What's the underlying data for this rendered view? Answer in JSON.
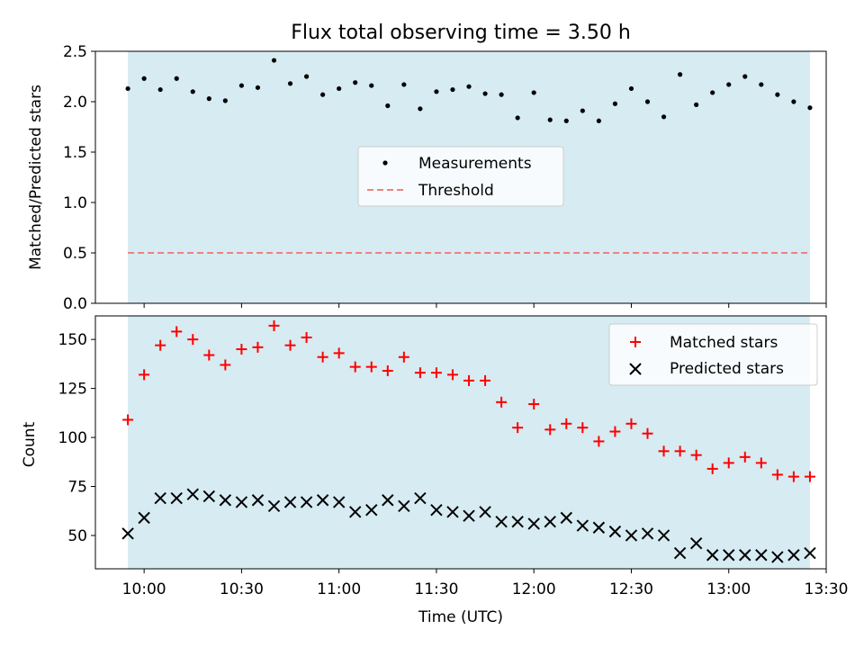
{
  "chart_data": [
    {
      "type": "scatter",
      "panel": "top",
      "title": "Flux total observing time = 3.50 h",
      "xlabel": "",
      "ylabel": "Matched/Predicted stars",
      "ylim": [
        0,
        2.5
      ],
      "yticks": [
        "0.0",
        "0.5",
        "1.0",
        "1.5",
        "2.0",
        "2.5"
      ],
      "legend_position": "center",
      "series": [
        {
          "name": "Measurements",
          "color": "#000000",
          "marker": "dot",
          "times_min": [
            595,
            600,
            605,
            610,
            615,
            620,
            625,
            630,
            635,
            640,
            645,
            650,
            655,
            660,
            665,
            670,
            675,
            680,
            685,
            690,
            695,
            700,
            705,
            710,
            715,
            720,
            725,
            730,
            735,
            740,
            745,
            750,
            755,
            760,
            765,
            770,
            775,
            780,
            785,
            790,
            795,
            800,
            805
          ],
          "values": [
            2.13,
            2.23,
            2.12,
            2.23,
            2.1,
            2.03,
            2.01,
            2.16,
            2.14,
            2.41,
            2.18,
            2.25,
            2.07,
            2.13,
            2.19,
            2.16,
            1.96,
            2.17,
            1.93,
            2.1,
            2.12,
            2.15,
            2.08,
            2.07,
            1.84,
            2.09,
            1.82,
            1.81,
            1.91,
            1.81,
            1.98,
            2.13,
            2.0,
            1.85,
            2.27,
            1.97,
            2.09,
            2.17,
            2.25,
            2.17,
            2.07,
            2.0,
            1.94
          ]
        },
        {
          "name": "Threshold",
          "color": "#f08080",
          "style": "dashed",
          "value": 0.5
        }
      ]
    },
    {
      "type": "scatter",
      "panel": "bottom",
      "xlabel": "Time (UTC)",
      "ylabel": "Count",
      "ylim": [
        33,
        162
      ],
      "yticks": [
        "50",
        "75",
        "100",
        "125",
        "150"
      ],
      "xticks": [
        "10:00",
        "10:30",
        "11:00",
        "11:30",
        "12:00",
        "12:30",
        "13:00",
        "13:30"
      ],
      "xlim_min": [
        585,
        810
      ],
      "legend_position": "upper right",
      "series": [
        {
          "name": "Matched stars",
          "color": "#ff0000",
          "marker": "plus",
          "times_min": [
            595,
            600,
            605,
            610,
            615,
            620,
            625,
            630,
            635,
            640,
            645,
            650,
            655,
            660,
            665,
            670,
            675,
            680,
            685,
            690,
            695,
            700,
            705,
            710,
            715,
            720,
            725,
            730,
            735,
            740,
            745,
            750,
            755,
            760,
            765,
            770,
            775,
            780,
            785,
            790,
            795,
            800,
            805
          ],
          "values": [
            109,
            132,
            147,
            154,
            150,
            142,
            137,
            145,
            146,
            157,
            147,
            151,
            141,
            143,
            136,
            136,
            134,
            141,
            133,
            133,
            132,
            129,
            129,
            118,
            105,
            117,
            104,
            107,
            105,
            98,
            103,
            107,
            102,
            93,
            93,
            91,
            84,
            87,
            90,
            87,
            81,
            80,
            80
          ]
        },
        {
          "name": "Predicted stars",
          "color": "#000000",
          "marker": "x",
          "times_min": [
            595,
            600,
            605,
            610,
            615,
            620,
            625,
            630,
            635,
            640,
            645,
            650,
            655,
            660,
            665,
            670,
            675,
            680,
            685,
            690,
            695,
            700,
            705,
            710,
            715,
            720,
            725,
            730,
            735,
            740,
            745,
            750,
            755,
            760,
            765,
            770,
            775,
            780,
            785,
            790,
            795,
            800,
            805
          ],
          "values": [
            51,
            59,
            69,
            69,
            71,
            70,
            68,
            67,
            68,
            65,
            67,
            67,
            68,
            67,
            62,
            63,
            68,
            65,
            69,
            63,
            62,
            60,
            62,
            57,
            57,
            56,
            57,
            59,
            55,
            54,
            52,
            50,
            51,
            50,
            41,
            46,
            40,
            40,
            40,
            40,
            39,
            40,
            41
          ]
        }
      ]
    }
  ],
  "observing_span_min": [
    595,
    805
  ],
  "colors": {
    "span_fill": "#add8e6",
    "span_opacity": 0.5,
    "legend_face": "#ffffff"
  }
}
